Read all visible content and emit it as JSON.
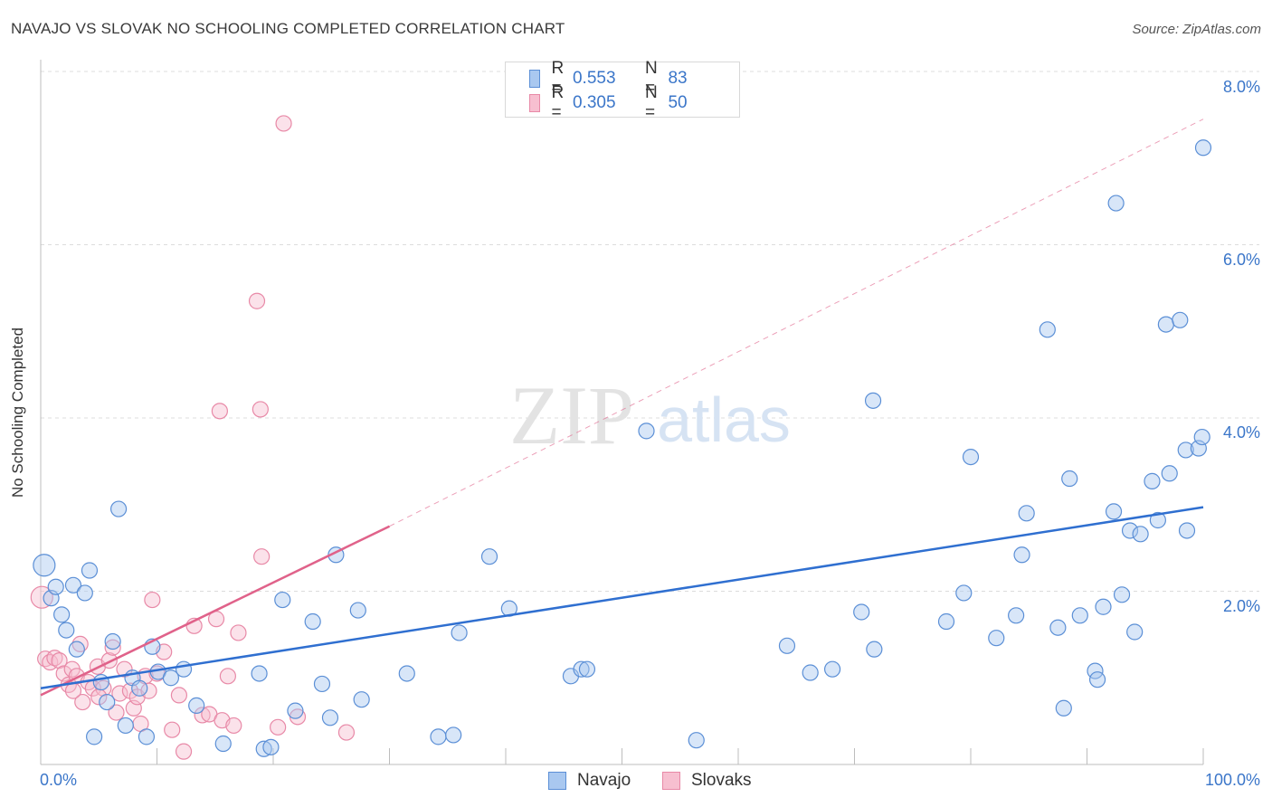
{
  "title": "NAVAJO VS SLOVAK NO SCHOOLING COMPLETED CORRELATION CHART",
  "source": "Source: ZipAtlas.com",
  "watermark": {
    "zip": "ZIP",
    "atlas": "atlas"
  },
  "colors": {
    "navajo_fill": "#a9c8f0",
    "navajo_stroke": "#5b8fd6",
    "navajo_line": "#2f6fd0",
    "slovak_fill": "#f7bfd0",
    "slovak_stroke": "#e889a7",
    "slovak_line": "#e0628a",
    "tick_text": "#3b76c9",
    "grid": "#dcdcdc"
  },
  "legend_top": {
    "rows": [
      {
        "r_label": "R =",
        "r_value": "0.553",
        "n_label": "N =",
        "n_value": "83"
      },
      {
        "r_label": "R =",
        "r_value": "0.305",
        "n_label": "N =",
        "n_value": "50"
      }
    ]
  },
  "legend_bottom": {
    "items": [
      "Navajo",
      "Slovaks"
    ]
  },
  "chart_data": {
    "type": "scatter",
    "title": "NAVAJO VS SLOVAK NO SCHOOLING COMPLETED CORRELATION CHART",
    "xlabel": "",
    "ylabel": "No Schooling Completed",
    "xlim": [
      0,
      100
    ],
    "ylim": [
      0,
      8.0
    ],
    "x_tick_labels": [
      "0.0%",
      "100.0%"
    ],
    "y_ticks": [
      2.0,
      4.0,
      6.0,
      8.0
    ],
    "y_tick_labels": [
      "2.0%",
      "4.0%",
      "6.0%",
      "8.0%"
    ],
    "grid": true,
    "legend_position": "top-center",
    "series": [
      {
        "name": "Navajo",
        "stats": {
          "R": 0.553,
          "N": 83
        },
        "trend": {
          "x": [
            0,
            100
          ],
          "y": [
            0.88,
            2.97
          ]
        },
        "points": [
          [
            0.3,
            2.3
          ],
          [
            0.9,
            1.92
          ],
          [
            1.3,
            2.05
          ],
          [
            1.8,
            1.73
          ],
          [
            2.2,
            1.55
          ],
          [
            2.8,
            2.07
          ],
          [
            3.1,
            1.33
          ],
          [
            3.8,
            1.98
          ],
          [
            4.2,
            2.24
          ],
          [
            4.6,
            0.32
          ],
          [
            5.2,
            0.95
          ],
          [
            5.7,
            0.72
          ],
          [
            6.2,
            1.42
          ],
          [
            6.7,
            2.95
          ],
          [
            7.3,
            0.45
          ],
          [
            7.9,
            1.0
          ],
          [
            8.5,
            0.88
          ],
          [
            9.1,
            0.32
          ],
          [
            9.6,
            1.36
          ],
          [
            10.1,
            1.07
          ],
          [
            11.2,
            1.0
          ],
          [
            12.3,
            1.1
          ],
          [
            13.4,
            0.68
          ],
          [
            15.7,
            0.24
          ],
          [
            18.8,
            1.05
          ],
          [
            19.2,
            0.18
          ],
          [
            19.8,
            0.2
          ],
          [
            20.8,
            1.9
          ],
          [
            21.9,
            0.62
          ],
          [
            23.4,
            1.65
          ],
          [
            24.2,
            0.93
          ],
          [
            24.9,
            0.54
          ],
          [
            25.4,
            2.42
          ],
          [
            27.3,
            1.78
          ],
          [
            27.6,
            0.75
          ],
          [
            31.5,
            1.05
          ],
          [
            34.2,
            0.32
          ],
          [
            35.5,
            0.34
          ],
          [
            36.0,
            1.52
          ],
          [
            38.6,
            2.4
          ],
          [
            40.3,
            1.8
          ],
          [
            45.6,
            1.02
          ],
          [
            46.5,
            1.1
          ],
          [
            47.0,
            1.1
          ],
          [
            52.1,
            3.85
          ],
          [
            56.4,
            0.28
          ],
          [
            64.2,
            1.37
          ],
          [
            66.2,
            1.06
          ],
          [
            68.1,
            1.1
          ],
          [
            70.6,
            1.76
          ],
          [
            71.7,
            1.33
          ],
          [
            71.6,
            4.2
          ],
          [
            77.9,
            1.65
          ],
          [
            79.4,
            1.98
          ],
          [
            80.0,
            3.55
          ],
          [
            82.2,
            1.46
          ],
          [
            83.9,
            1.72
          ],
          [
            84.4,
            2.42
          ],
          [
            84.8,
            2.9
          ],
          [
            86.6,
            5.02
          ],
          [
            87.5,
            1.58
          ],
          [
            88.0,
            0.65
          ],
          [
            88.5,
            3.3
          ],
          [
            89.4,
            1.72
          ],
          [
            90.7,
            1.08
          ],
          [
            90.9,
            0.98
          ],
          [
            91.4,
            1.82
          ],
          [
            92.3,
            2.92
          ],
          [
            92.5,
            6.48
          ],
          [
            93.0,
            1.96
          ],
          [
            93.7,
            2.7
          ],
          [
            94.1,
            1.53
          ],
          [
            94.6,
            2.66
          ],
          [
            95.6,
            3.27
          ],
          [
            96.1,
            2.82
          ],
          [
            96.8,
            5.08
          ],
          [
            97.1,
            3.36
          ],
          [
            98.0,
            5.13
          ],
          [
            98.5,
            3.63
          ],
          [
            98.6,
            2.7
          ],
          [
            99.6,
            3.65
          ],
          [
            99.9,
            3.78
          ],
          [
            100.0,
            7.12
          ]
        ]
      },
      {
        "name": "Slovaks",
        "stats": {
          "R": 0.305,
          "N": 50
        },
        "trend": {
          "x": [
            0,
            30
          ],
          "y": [
            0.8,
            2.75
          ]
        },
        "trend_extension": {
          "x": [
            30,
            100
          ],
          "y": [
            2.75,
            7.45
          ]
        },
        "points": [
          [
            0.1,
            1.93
          ],
          [
            0.4,
            1.22
          ],
          [
            0.8,
            1.18
          ],
          [
            1.2,
            1.23
          ],
          [
            1.6,
            1.2
          ],
          [
            2.0,
            1.05
          ],
          [
            2.4,
            0.92
          ],
          [
            2.7,
            1.1
          ],
          [
            3.1,
            1.02
          ],
          [
            3.4,
            1.39
          ],
          [
            3.6,
            0.72
          ],
          [
            4.1,
            0.95
          ],
          [
            4.5,
            0.88
          ],
          [
            4.9,
            1.13
          ],
          [
            5.4,
            0.88
          ],
          [
            5.9,
            1.2
          ],
          [
            6.2,
            1.35
          ],
          [
            6.5,
            0.6
          ],
          [
            6.8,
            0.82
          ],
          [
            7.2,
            1.1
          ],
          [
            7.7,
            0.85
          ],
          [
            8.0,
            0.65
          ],
          [
            8.3,
            0.78
          ],
          [
            8.6,
            0.47
          ],
          [
            9.0,
            1.02
          ],
          [
            9.3,
            0.85
          ],
          [
            9.6,
            1.9
          ],
          [
            10.0,
            1.05
          ],
          [
            10.6,
            1.3
          ],
          [
            11.3,
            0.4
          ],
          [
            11.9,
            0.8
          ],
          [
            12.3,
            0.15
          ],
          [
            13.2,
            1.6
          ],
          [
            13.9,
            0.57
          ],
          [
            14.5,
            0.58
          ],
          [
            15.1,
            1.68
          ],
          [
            15.6,
            0.51
          ],
          [
            16.1,
            1.02
          ],
          [
            16.6,
            0.45
          ],
          [
            17.0,
            1.52
          ],
          [
            15.4,
            4.08
          ],
          [
            18.6,
            5.35
          ],
          [
            18.9,
            4.1
          ],
          [
            19.0,
            2.4
          ],
          [
            20.4,
            0.43
          ],
          [
            22.1,
            0.55
          ],
          [
            26.3,
            0.37
          ],
          [
            20.9,
            7.4
          ],
          [
            2.8,
            0.85
          ],
          [
            5.0,
            0.78
          ]
        ]
      }
    ]
  }
}
